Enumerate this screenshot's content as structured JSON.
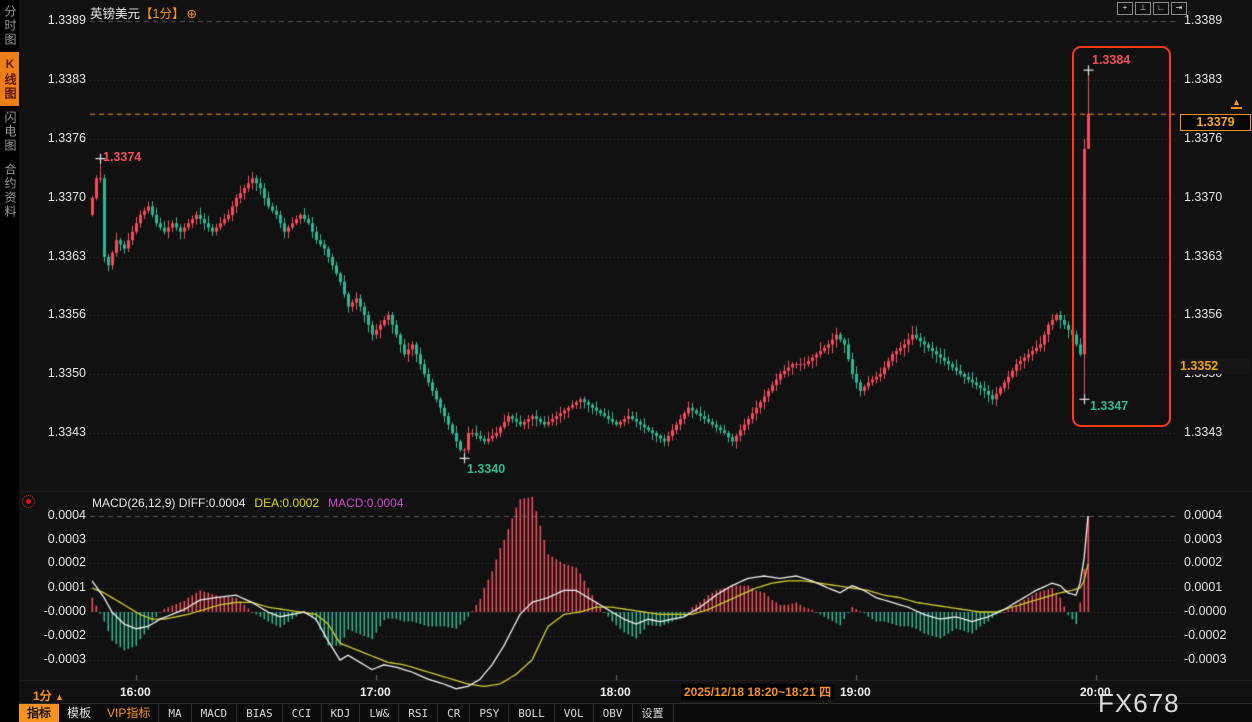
{
  "header": {
    "symbol": "英镑美元",
    "period_tag": "【1分】",
    "plus_icon": "⊕",
    "tools": [
      {
        "name": "crosshair-icon",
        "glyph": "+"
      },
      {
        "name": "axis-scale-icon",
        "glyph": "⊥"
      },
      {
        "name": "axis-pan-icon",
        "glyph": "∟"
      },
      {
        "name": "jump-latest-icon",
        "glyph": "⇥"
      }
    ]
  },
  "sidebar": {
    "tabs": [
      {
        "label": "分时图",
        "active": false
      },
      {
        "label": "K线图",
        "active": true
      },
      {
        "label": "闪电图",
        "active": false
      },
      {
        "label": "合约资料",
        "active": false
      }
    ]
  },
  "price_axis": {
    "ticks": [
      "1.3389",
      "1.3383",
      "1.3376",
      "1.3370",
      "1.3363",
      "1.3356",
      "1.3350",
      "1.3343"
    ]
  },
  "macd_panel": {
    "title": "MACD(26,12,9)",
    "diff_label": "DIFF:0.0004",
    "dea_label": "DEA:0.0002",
    "macd_label": "MACD:0.0004",
    "ticks": [
      "0.0004",
      "0.0003",
      "0.0002",
      "0.0001",
      "-0.0000",
      "-0.0002",
      "-0.0003"
    ]
  },
  "markers": {
    "early_high": "1.3374",
    "high": "1.3384",
    "low": "1.3347",
    "session_low": "1.3340",
    "last": "1.3379",
    "ref": "1.3352"
  },
  "time_axis": {
    "tooltip": "2025/12/18 18:20~18:21 四",
    "period": "1分",
    "period_arrow": "▲"
  },
  "toolbar": {
    "items": [
      {
        "label": "指标",
        "type": "tab-active"
      },
      {
        "label": "模板",
        "type": "tab"
      },
      {
        "label": "VIP指标",
        "type": "tab-vip"
      },
      {
        "label": "MA",
        "type": "cell"
      },
      {
        "label": "MACD",
        "type": "cell"
      },
      {
        "label": "BIAS",
        "type": "cell"
      },
      {
        "label": "CCI",
        "type": "cell"
      },
      {
        "label": "KDJ",
        "type": "cell"
      },
      {
        "label": "LW&",
        "type": "cell"
      },
      {
        "label": "RSI",
        "type": "cell"
      },
      {
        "label": "CR",
        "type": "cell"
      },
      {
        "label": "PSY",
        "type": "cell"
      },
      {
        "label": "BOLL",
        "type": "cell"
      },
      {
        "label": "VOL",
        "type": "cell"
      },
      {
        "label": "OBV",
        "type": "cell"
      },
      {
        "label": "设置",
        "type": "cell"
      }
    ]
  },
  "watermark": "FX678",
  "chart_data": {
    "type": "candlestick",
    "symbol": "英镑美元",
    "interval": "1分",
    "x_axis": {
      "ticks": [
        "16:00",
        "17:00",
        "18:00",
        "19:00",
        "20:00"
      ],
      "tick_minutes": [
        11,
        71,
        131,
        191,
        251
      ],
      "start_time": "15:49",
      "minutes": 250
    },
    "y_axis": {
      "ticks": [
        1.3389,
        1.3383,
        1.3376,
        1.337,
        1.3363,
        1.3356,
        1.335,
        1.3343
      ]
    },
    "key_prices": {
      "early_high": 1.3374,
      "session_high": 1.3384,
      "session_low": 1.334,
      "spike_low": 1.3347,
      "last": 1.3379,
      "reference": 1.3352
    },
    "last_price_line": 1.3379,
    "cross_markers": [
      [
        2,
        1.3374
      ],
      [
        249,
        1.3384
      ],
      [
        248,
        1.3347
      ],
      [
        93,
        1.334
      ]
    ],
    "close_anchors": [
      [
        0,
        1.337
      ],
      [
        1,
        1.3372
      ],
      [
        2,
        1.3372
      ],
      [
        3,
        1.3363
      ],
      [
        4,
        1.3362
      ],
      [
        6,
        1.3365
      ],
      [
        8,
        1.3364
      ],
      [
        10,
        1.3366
      ],
      [
        12,
        1.3368
      ],
      [
        14,
        1.3369
      ],
      [
        16,
        1.3367
      ],
      [
        18,
        1.3366
      ],
      [
        20,
        1.3367
      ],
      [
        22,
        1.3366
      ],
      [
        24,
        1.3367
      ],
      [
        26,
        1.3368
      ],
      [
        28,
        1.3367
      ],
      [
        30,
        1.3366
      ],
      [
        32,
        1.3367
      ],
      [
        34,
        1.3368
      ],
      [
        36,
        1.337
      ],
      [
        38,
        1.3371
      ],
      [
        40,
        1.3372
      ],
      [
        42,
        1.3371
      ],
      [
        44,
        1.3369
      ],
      [
        46,
        1.3368
      ],
      [
        48,
        1.3366
      ],
      [
        50,
        1.3367
      ],
      [
        52,
        1.3368
      ],
      [
        54,
        1.3367
      ],
      [
        56,
        1.3365
      ],
      [
        58,
        1.3364
      ],
      [
        60,
        1.3362
      ],
      [
        62,
        1.336
      ],
      [
        64,
        1.3357
      ],
      [
        66,
        1.3358
      ],
      [
        68,
        1.3356
      ],
      [
        70,
        1.3354
      ],
      [
        72,
        1.3355
      ],
      [
        74,
        1.3356
      ],
      [
        76,
        1.3354
      ],
      [
        78,
        1.3352
      ],
      [
        80,
        1.3353
      ],
      [
        82,
        1.3351
      ],
      [
        84,
        1.3349
      ],
      [
        86,
        1.3347
      ],
      [
        88,
        1.3345
      ],
      [
        90,
        1.3343
      ],
      [
        92,
        1.3341
      ],
      [
        93,
        1.3341
      ],
      [
        94,
        1.3343
      ],
      [
        95,
        1.3343
      ],
      [
        98,
        1.3342
      ],
      [
        101,
        1.3343
      ],
      [
        104,
        1.3345
      ],
      [
        107,
        1.3344
      ],
      [
        110,
        1.3345
      ],
      [
        113,
        1.3344
      ],
      [
        116,
        1.3345
      ],
      [
        119,
        1.3346
      ],
      [
        122,
        1.3347
      ],
      [
        125,
        1.3346
      ],
      [
        128,
        1.3345
      ],
      [
        131,
        1.3344
      ],
      [
        134,
        1.3345
      ],
      [
        137,
        1.3344
      ],
      [
        140,
        1.3343
      ],
      [
        143,
        1.3342
      ],
      [
        146,
        1.3344
      ],
      [
        149,
        1.3346
      ],
      [
        152,
        1.3345
      ],
      [
        155,
        1.3344
      ],
      [
        158,
        1.3343
      ],
      [
        160,
        1.3342
      ],
      [
        163,
        1.3344
      ],
      [
        166,
        1.3346
      ],
      [
        169,
        1.3348
      ],
      [
        172,
        1.335
      ],
      [
        175,
        1.3351
      ],
      [
        178,
        1.3351
      ],
      [
        181,
        1.3352
      ],
      [
        184,
        1.3353
      ],
      [
        186,
        1.3354
      ],
      [
        188,
        1.3353
      ],
      [
        190,
        1.335
      ],
      [
        192,
        1.3348
      ],
      [
        194,
        1.3349
      ],
      [
        197,
        1.335
      ],
      [
        200,
        1.3352
      ],
      [
        203,
        1.3353
      ],
      [
        205,
        1.3354
      ],
      [
        208,
        1.3353
      ],
      [
        211,
        1.3352
      ],
      [
        214,
        1.3351
      ],
      [
        217,
        1.335
      ],
      [
        220,
        1.3349
      ],
      [
        223,
        1.3348
      ],
      [
        225,
        1.3347
      ],
      [
        228,
        1.3349
      ],
      [
        231,
        1.3351
      ],
      [
        234,
        1.3352
      ],
      [
        237,
        1.3353
      ],
      [
        239,
        1.3355
      ],
      [
        241,
        1.3356
      ],
      [
        243,
        1.3355
      ],
      [
        245,
        1.3354
      ],
      [
        246,
        1.3353
      ],
      [
        247,
        1.3352
      ],
      [
        248,
        1.3375
      ],
      [
        249,
        1.3379
      ]
    ],
    "candle_overrides": {
      "2": {
        "h": 1.3374
      },
      "93": {
        "l": 1.334
      },
      "248": {
        "o": 1.3352,
        "h": 1.3376,
        "l": 1.3347,
        "c": 1.3375
      },
      "249": {
        "o": 1.3375,
        "h": 1.3384,
        "l": 1.3375,
        "c": 1.3379
      }
    },
    "highlight_box_minutes": [
      245,
      249
    ],
    "macd": {
      "params": [
        26,
        12,
        9
      ],
      "diff": 0.0004,
      "dea": 0.0002,
      "macd": 0.0004,
      "histogram_formula": "2*(diff-dea)",
      "diff_anchors": [
        [
          0,
          0.00013
        ],
        [
          3,
          6e-05
        ],
        [
          5,
          0.0
        ],
        [
          8,
          -5e-05
        ],
        [
          11,
          -7e-05
        ],
        [
          14,
          -6e-05
        ],
        [
          17,
          -3e-05
        ],
        [
          20,
          -1e-05
        ],
        [
          23,
          1e-05
        ],
        [
          27,
          5e-05
        ],
        [
          31,
          6e-05
        ],
        [
          36,
          7e-05
        ],
        [
          40,
          4e-05
        ],
        [
          44,
          0.0
        ],
        [
          47,
          -2e-05
        ],
        [
          50,
          -1e-05
        ],
        [
          53,
          0.0
        ],
        [
          56,
          -3e-05
        ],
        [
          59,
          -0.00012
        ],
        [
          62,
          -0.0002
        ],
        [
          64,
          -0.00018
        ],
        [
          67,
          -0.00021
        ],
        [
          70,
          -0.00024
        ],
        [
          73,
          -0.00022
        ],
        [
          76,
          -0.00023
        ],
        [
          80,
          -0.00025
        ],
        [
          84,
          -0.00028
        ],
        [
          88,
          -0.0003
        ],
        [
          91,
          -0.00032
        ],
        [
          94,
          -0.00031
        ],
        [
          97,
          -0.00028
        ],
        [
          100,
          -0.00022
        ],
        [
          103,
          -0.00014
        ],
        [
          107,
          -1e-05
        ],
        [
          110,
          4e-05
        ],
        [
          114,
          6e-05
        ],
        [
          118,
          9e-05
        ],
        [
          121,
          9e-05
        ],
        [
          124,
          6e-05
        ],
        [
          127,
          3e-05
        ],
        [
          130,
          0.0
        ],
        [
          133,
          -3e-05
        ],
        [
          136,
          -5e-05
        ],
        [
          139,
          -3e-05
        ],
        [
          142,
          -4e-05
        ],
        [
          145,
          -3e-05
        ],
        [
          148,
          -2e-05
        ],
        [
          152,
          2e-05
        ],
        [
          156,
          7e-05
        ],
        [
          160,
          0.00011
        ],
        [
          164,
          0.00014
        ],
        [
          168,
          0.00015
        ],
        [
          172,
          0.00014
        ],
        [
          176,
          0.00015
        ],
        [
          180,
          0.00013
        ],
        [
          184,
          0.0001
        ],
        [
          187,
          8e-05
        ],
        [
          190,
          0.00011
        ],
        [
          193,
          9e-05
        ],
        [
          196,
          6e-05
        ],
        [
          200,
          4e-05
        ],
        [
          204,
          2e-05
        ],
        [
          208,
          -1e-05
        ],
        [
          212,
          -3e-05
        ],
        [
          216,
          -2e-05
        ],
        [
          220,
          -4e-05
        ],
        [
          224,
          -2e-05
        ],
        [
          228,
          1e-05
        ],
        [
          232,
          5e-05
        ],
        [
          236,
          9e-05
        ],
        [
          240,
          0.00012
        ],
        [
          242,
          0.00011
        ],
        [
          244,
          8e-05
        ],
        [
          246,
          7e-05
        ],
        [
          247,
          0.00012
        ],
        [
          248,
          0.00022
        ],
        [
          249,
          0.0004
        ]
      ],
      "dea_anchors": [
        [
          0,
          0.0001
        ],
        [
          3,
          8e-05
        ],
        [
          6,
          5e-05
        ],
        [
          9,
          2e-05
        ],
        [
          12,
          -1e-05
        ],
        [
          15,
          -3e-05
        ],
        [
          18,
          -3e-05
        ],
        [
          21,
          -2e-05
        ],
        [
          24,
          -1e-05
        ],
        [
          28,
          1e-05
        ],
        [
          32,
          3e-05
        ],
        [
          36,
          4e-05
        ],
        [
          40,
          4e-05
        ],
        [
          44,
          2e-05
        ],
        [
          48,
          1e-05
        ],
        [
          52,
          0.0
        ],
        [
          56,
          -1e-05
        ],
        [
          59,
          -5e-05
        ],
        [
          62,
          -0.00013
        ],
        [
          65,
          -0.00015
        ],
        [
          68,
          -0.00017
        ],
        [
          71,
          -0.00019
        ],
        [
          74,
          -0.00021
        ],
        [
          78,
          -0.00022
        ],
        [
          82,
          -0.00024
        ],
        [
          86,
          -0.00026
        ],
        [
          90,
          -0.00028
        ],
        [
          94,
          -0.0003
        ],
        [
          98,
          -0.00031
        ],
        [
          102,
          -0.0003
        ],
        [
          106,
          -0.00026
        ],
        [
          110,
          -0.0002
        ],
        [
          114,
          -6e-05
        ],
        [
          118,
          -1e-05
        ],
        [
          122,
          0.0
        ],
        [
          126,
          2e-05
        ],
        [
          130,
          2e-05
        ],
        [
          134,
          1e-05
        ],
        [
          138,
          0.0
        ],
        [
          142,
          -1e-05
        ],
        [
          146,
          -1e-05
        ],
        [
          150,
          -1e-05
        ],
        [
          154,
          1e-05
        ],
        [
          158,
          4e-05
        ],
        [
          162,
          7e-05
        ],
        [
          166,
          0.0001
        ],
        [
          170,
          0.00012
        ],
        [
          174,
          0.00013
        ],
        [
          178,
          0.00013
        ],
        [
          182,
          0.00012
        ],
        [
          186,
          0.00011
        ],
        [
          190,
          0.0001
        ],
        [
          194,
          9e-05
        ],
        [
          198,
          7e-05
        ],
        [
          202,
          6e-05
        ],
        [
          206,
          4e-05
        ],
        [
          210,
          3e-05
        ],
        [
          214,
          2e-05
        ],
        [
          218,
          1e-05
        ],
        [
          222,
          0.0
        ],
        [
          226,
          0.0
        ],
        [
          230,
          2e-05
        ],
        [
          234,
          4e-05
        ],
        [
          238,
          6e-05
        ],
        [
          242,
          8e-05
        ],
        [
          245,
          9e-05
        ],
        [
          247,
          0.0001
        ],
        [
          248,
          0.00013
        ],
        [
          249,
          0.0002
        ]
      ]
    },
    "colors": {
      "up": "#f04e5a",
      "down": "#31b491",
      "diff_line": "#f2f2f2",
      "dea_line": "#cfcf2a",
      "macd_value_text": "#cf49cf",
      "accent": "#f7931e",
      "highlight_box": "#f33a1a",
      "grid": "#3c3c3c",
      "background": "#111111",
      "marker_up_text": "#f04e5a",
      "marker_down_text": "#2fb98f"
    },
    "legend_position": "top-left",
    "grid": "dotted-horizontal"
  }
}
